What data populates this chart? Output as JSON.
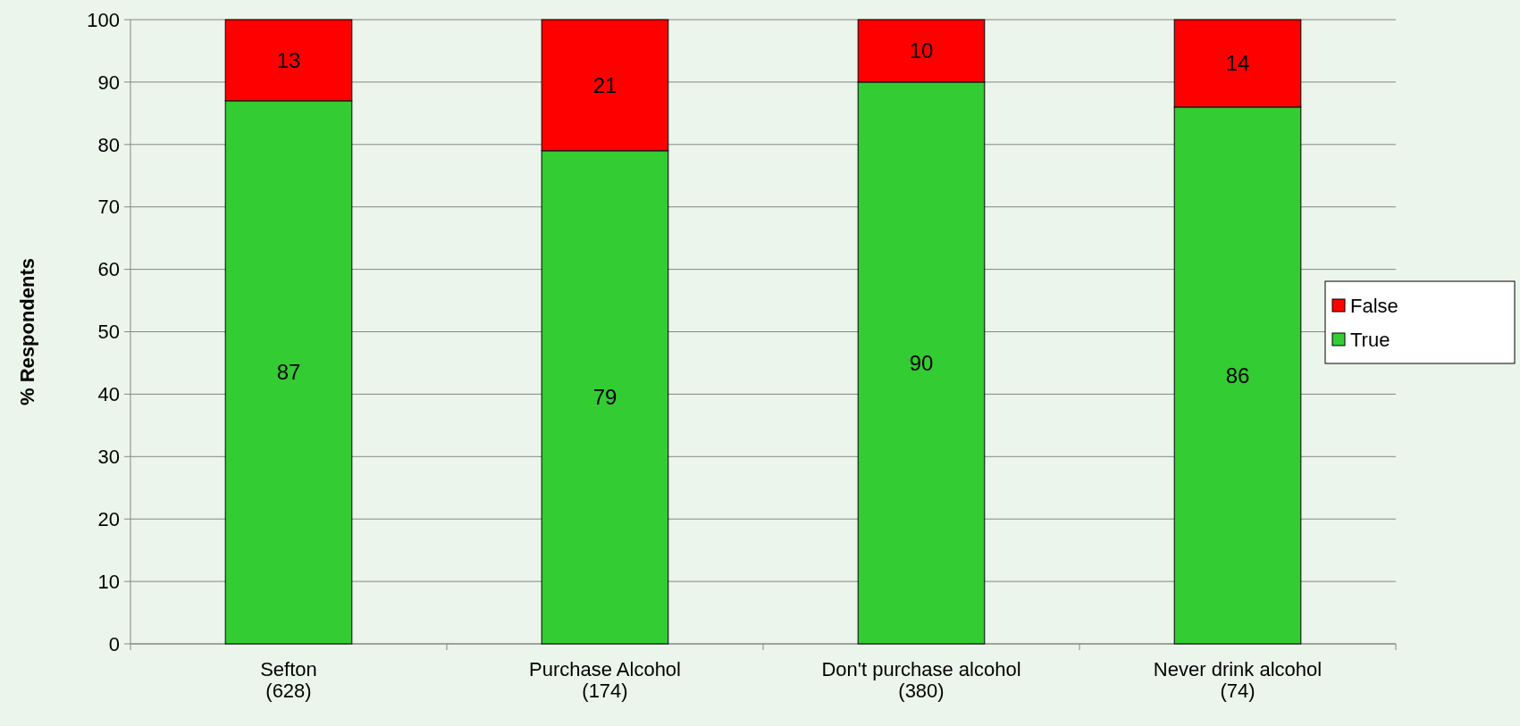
{
  "chart_data": {
    "type": "bar",
    "ylabel": "% Respondents",
    "categories": [
      "Sefton\n(628)",
      "Purchase Alcohol\n(174)",
      "Don't purchase alcohol\n(380)",
      "Never drink alcohol\n(74)"
    ],
    "series": [
      {
        "name": "True",
        "color": "#33cc33",
        "values": [
          87,
          79,
          90,
          86
        ]
      },
      {
        "name": "False",
        "color": "#ff0000",
        "values": [
          13,
          21,
          10,
          14
        ]
      }
    ],
    "stacked": true,
    "ylim": [
      0,
      100
    ],
    "yticks": [
      0,
      10,
      20,
      30,
      40,
      50,
      60,
      70,
      80,
      90,
      100
    ],
    "grid": "y",
    "legend": "right",
    "data_labels": true
  }
}
